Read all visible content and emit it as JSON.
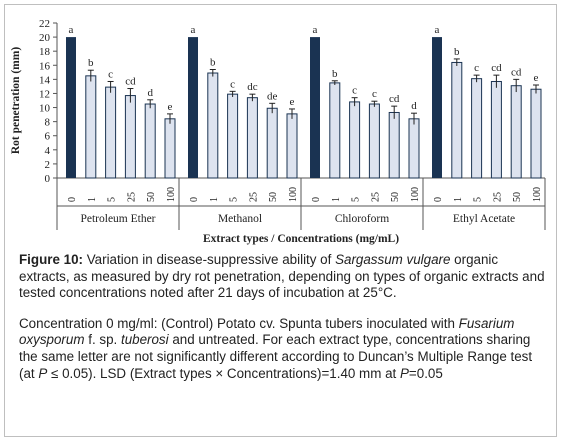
{
  "chart_data": {
    "type": "bar",
    "ylabel": "Rot penetration (mm)",
    "xlabel": "Extract types / Concentrations (mg/mL)",
    "ylim": [
      0,
      22
    ],
    "yticks": [
      0,
      2,
      4,
      6,
      8,
      10,
      12,
      14,
      16,
      18,
      20,
      22
    ],
    "concentrations": [
      "0",
      "1",
      "5",
      "25",
      "50",
      "100"
    ],
    "groups": [
      {
        "name": "Petroleum Ether",
        "values": [
          20,
          14.5,
          12.9,
          11.7,
          10.5,
          8.4
        ],
        "errors": [
          0,
          0.8,
          0.8,
          1.0,
          0.6,
          0.7
        ],
        "letters": [
          "a",
          "b",
          "c",
          "cd",
          "d",
          "e"
        ]
      },
      {
        "name": "Methanol",
        "values": [
          20,
          14.9,
          11.9,
          11.4,
          9.9,
          9.1
        ],
        "errors": [
          0,
          0.5,
          0.4,
          0.5,
          0.7,
          0.7
        ],
        "letters": [
          "a",
          "b",
          "c",
          "dc",
          "de",
          "e"
        ]
      },
      {
        "name": "Chloroform",
        "values": [
          20,
          13.5,
          10.8,
          10.5,
          9.3,
          8.4
        ],
        "errors": [
          0,
          0.3,
          0.6,
          0.4,
          0.9,
          0.8
        ],
        "letters": [
          "a",
          "b",
          "c",
          "c",
          "cd",
          "d"
        ]
      },
      {
        "name": "Ethyl Acetate",
        "values": [
          20,
          16.4,
          14.1,
          13.7,
          13.1,
          12.6
        ],
        "errors": [
          0,
          0.5,
          0.5,
          0.9,
          0.9,
          0.6
        ],
        "letters": [
          "a",
          "b",
          "c",
          "cd",
          "cd",
          "e"
        ]
      }
    ],
    "colors": {
      "control": "#1a3352",
      "treated": "#dde3ef",
      "treated_border": "#1a3352"
    },
    "grid": false,
    "legend": "none"
  },
  "caption": {
    "fig_label": "Figure 10:",
    "line1_text": " Variation in disease-suppressive ability of ",
    "line1_italic": "Sargassum vulgare",
    "line1_rest": " organic extracts, as measured by dry rot penetration, depending on types of organic extracts and tested concentrations noted after 21 days of incubation at 25°C.",
    "p2_a": "Concentration 0 mg/ml: (Control) Potato cv. Spunta tubers inoculated with ",
    "p2_italic1": "Fusarium oxysporum",
    "p2_b": " f. sp. ",
    "p2_italic2": "tuberosi",
    "p2_c": " and untreated. For each extract type, concentrations sharing the same letter are not significantly different according to Duncan’s Multiple Range test (at ",
    "p2_italic3": "P",
    "p2_d": " ≤ 0.05). LSD (Extract types × Concentrations)=1.40 mm at ",
    "p2_italic4": "P",
    "p2_e": "=0.05"
  }
}
